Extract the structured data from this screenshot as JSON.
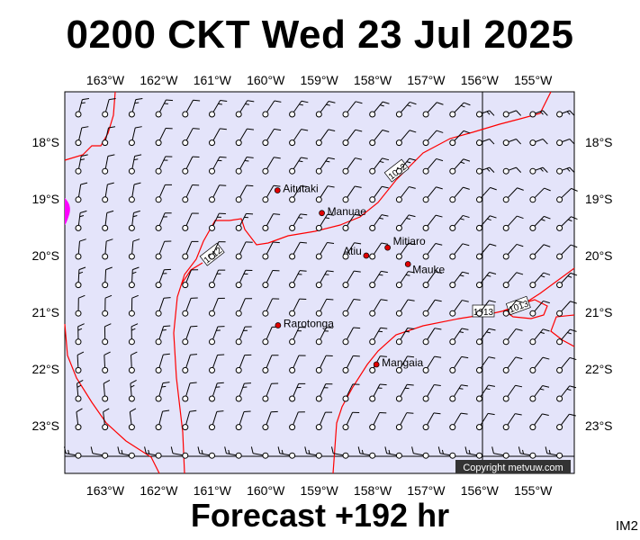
{
  "title": "0200 CKT Wed 23 Jul 2025",
  "footer": "Forecast +192 hr",
  "product_code": "IM2",
  "copyright": "Copyright metvuw.com",
  "colors": {
    "map_background": "#e4e4fa",
    "isobar": "#ff0000",
    "town": "#e00000",
    "high_pressure_patch": "#ff00ff"
  },
  "axes": {
    "lon_labels": [
      "163°W",
      "162°W",
      "161°W",
      "160°W",
      "159°W",
      "158°W",
      "157°W",
      "156°W",
      "155°W"
    ],
    "lat_labels": [
      "18°S",
      "19°S",
      "20°S",
      "21°S",
      "22°S",
      "23°S"
    ]
  },
  "isobar_labels": [
    "1012",
    "1012",
    "1013",
    "1013"
  ],
  "places": [
    {
      "name": "Aitutaki",
      "lon": -159.78,
      "lat": -18.85
    },
    {
      "name": "Manuae",
      "lon": -158.95,
      "lat": -19.25
    },
    {
      "name": "Atiu",
      "lon": -158.12,
      "lat": -20.0
    },
    {
      "name": "Mitiaro",
      "lon": -157.72,
      "lat": -19.86
    },
    {
      "name": "Mauke",
      "lon": -157.34,
      "lat": -20.15
    },
    {
      "name": "Rarotonga",
      "lon": -159.77,
      "lat": -21.23
    },
    {
      "name": "Mangaia",
      "lon": -157.93,
      "lat": -21.92
    }
  ]
}
